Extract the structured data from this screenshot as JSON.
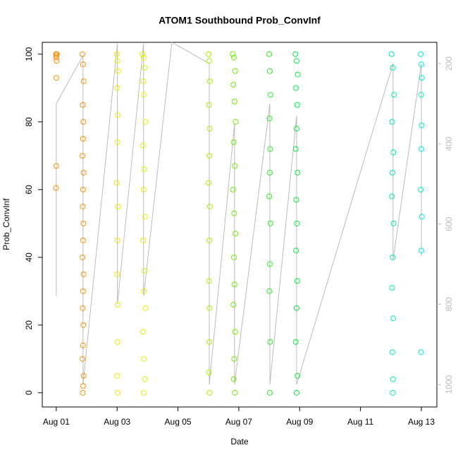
{
  "chart_data": {
    "type": "scatter",
    "title": "ATOM1 Southbound Prob_ConvInf",
    "xlabel": "Date",
    "ylabel": "Prob_ConvInf",
    "xlim": [
      0.54,
      13.51
    ],
    "ylim": [
      -4.2,
      103.5
    ],
    "y2lim": [
      1056,
      147
    ],
    "xticks": [
      {
        "value": 1,
        "label": "Aug 01"
      },
      {
        "value": 3,
        "label": "Aug 03"
      },
      {
        "value": 5,
        "label": "Aug 05"
      },
      {
        "value": 7,
        "label": "Aug 07"
      },
      {
        "value": 9,
        "label": "Aug 09"
      },
      {
        "value": 11,
        "label": "Aug 11"
      },
      {
        "value": 13,
        "label": "Aug 13"
      }
    ],
    "yticks": [
      0,
      20,
      40,
      60,
      80,
      100
    ],
    "y2ticks": [
      200,
      400,
      600,
      800,
      1000
    ],
    "y2color": "#bbbbbb",
    "series": [
      {
        "color": "#ff8c00",
        "x": [
          0.99,
          1.0,
          1.01,
          1.0,
          1.0,
          0.99,
          1.02,
          1.0
        ],
        "values": [
          100,
          99,
          98,
          93,
          67,
          60.5,
          100,
          99.5
        ]
      },
      {
        "color": "#ff9000",
        "x": [
          1.86,
          1.88,
          1.9,
          1.87,
          1.89,
          1.88,
          1.86,
          1.9,
          1.88,
          1.87,
          1.89,
          1.88,
          1.86,
          1.9,
          1.88,
          1.87,
          1.89,
          1.88,
          1.86,
          1.9,
          1.88,
          1.87
        ],
        "values": [
          100,
          97,
          92,
          85,
          80,
          75,
          70,
          65,
          60,
          55,
          50,
          45,
          40,
          35,
          30,
          25,
          20,
          14,
          10,
          5,
          2,
          0
        ]
      },
      {
        "color": "#eaea00",
        "x": [
          2.99,
          3.01,
          3.03,
          3.0,
          3.02,
          3.01,
          2.99,
          3.03,
          3.01,
          3.0,
          3.02,
          3.01,
          3.0,
          3.02
        ],
        "values": [
          100,
          98,
          95,
          90,
          82,
          74,
          62,
          55,
          45,
          35,
          26,
          15,
          5,
          0
        ]
      },
      {
        "color": "#e2f000",
        "x": [
          3.84,
          3.87,
          3.9,
          3.86,
          3.88,
          3.93,
          3.85,
          3.89,
          3.87,
          3.92,
          3.86,
          3.9,
          3.88,
          3.94,
          3.85,
          3.88,
          3.91,
          3.87
        ],
        "values": [
          100,
          99,
          96,
          92,
          88,
          80,
          73,
          66,
          60,
          52,
          45,
          36,
          30,
          25,
          18,
          10,
          4,
          0
        ]
      },
      {
        "color": "#a6f000",
        "x": [
          6.01,
          6.03,
          6.05,
          6.02,
          6.04,
          6.03,
          6.01,
          6.05,
          6.03,
          6.02,
          6.04,
          6.03,
          6.02,
          6.04
        ],
        "values": [
          100,
          98,
          92,
          85,
          78,
          70,
          62,
          55,
          45,
          33,
          25,
          15,
          6,
          0
        ]
      },
      {
        "color": "#6cee00",
        "x": [
          6.8,
          6.84,
          6.88,
          6.82,
          6.86,
          6.9,
          6.83,
          6.87,
          6.81,
          6.85,
          6.89,
          6.84,
          6.86,
          6.82,
          6.88,
          6.85,
          6.83,
          6.87
        ],
        "values": [
          100,
          99,
          95,
          91,
          86,
          80,
          74,
          67,
          60,
          53,
          47,
          40,
          32,
          26,
          18,
          10,
          4,
          0
        ]
      },
      {
        "color": "#2aee20",
        "x": [
          8.0,
          8.02,
          8.04,
          8.01,
          8.03,
          8.02,
          8.0,
          8.04,
          8.02,
          8.01,
          8.03,
          8.02
        ],
        "values": [
          100,
          95,
          88,
          81,
          72,
          65,
          58,
          50,
          38,
          30,
          15,
          0
        ]
      },
      {
        "color": "#00ee40",
        "x": [
          8.86,
          8.9,
          8.94,
          8.88,
          8.92,
          8.9,
          8.87,
          8.93,
          8.89,
          8.91,
          8.88,
          8.92,
          8.9,
          8.87,
          8.93,
          8.9
        ],
        "values": [
          100,
          98,
          94,
          90,
          85,
          78,
          72,
          65,
          57,
          50,
          42,
          33,
          25,
          15,
          5,
          0
        ]
      },
      {
        "color": "#00eeb0",
        "x": [
          12.02,
          12.06,
          12.1,
          12.04,
          12.08,
          12.05,
          12.03,
          12.09,
          12.06,
          12.04,
          12.08,
          12.05,
          12.07,
          12.06
        ],
        "values": [
          100,
          96,
          88,
          80,
          71,
          65,
          58,
          50,
          40,
          31,
          22,
          12,
          4,
          0
        ]
      },
      {
        "color": "#00eecc",
        "x": [
          12.98,
          13.0,
          13.02,
          12.99,
          13.01,
          13.0,
          12.98,
          13.02,
          13.0,
          12.99
        ],
        "values": [
          100,
          97,
          93,
          88,
          79,
          72,
          60,
          52,
          42,
          12
        ]
      }
    ],
    "line": {
      "color": "#bbbbbb",
      "axis": "y2",
      "x": [
        1.0,
        1.0,
        1.88,
        1.88,
        3.01,
        3.01,
        3.87,
        3.87,
        4.8,
        6.03,
        6.03,
        6.86,
        6.86,
        8.02,
        8.02,
        8.9,
        8.9,
        12.07,
        12.07,
        13.0,
        13.0
      ],
      "values": [
        780,
        300,
        180,
        1000,
        150,
        800,
        150,
        780,
        147,
        200,
        1000,
        350,
        1000,
        300,
        1000,
        330,
        1000,
        200,
        690,
        200,
        680
      ]
    }
  }
}
